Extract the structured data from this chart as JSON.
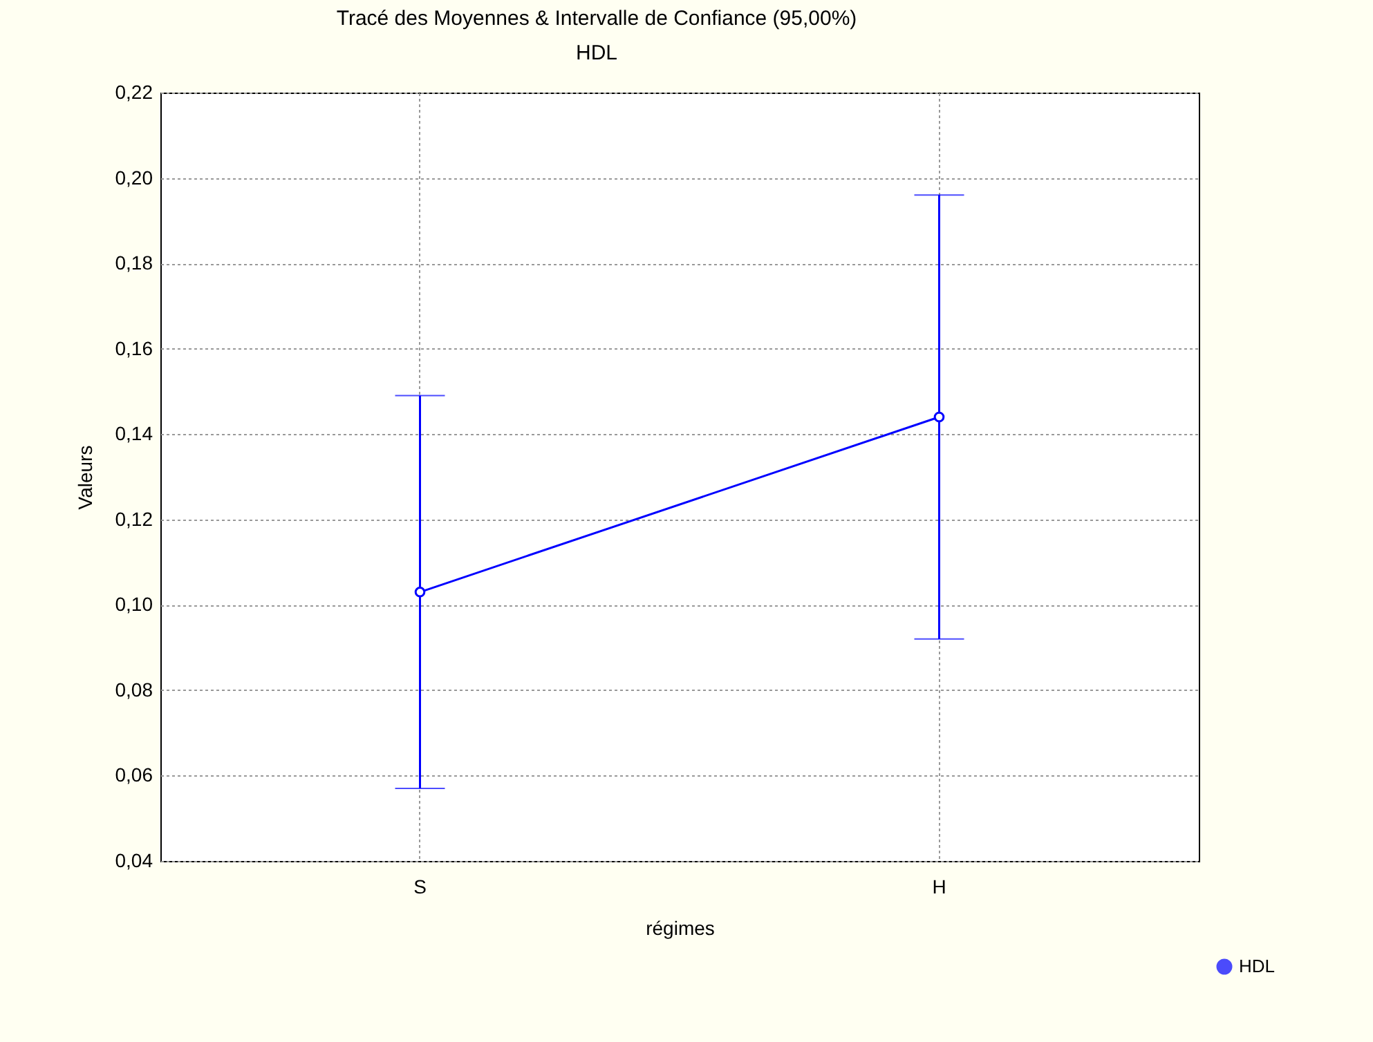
{
  "chart_data": {
    "type": "line",
    "title": "Tracé des Moyennes & Intervalle de Confiance (95,00%)",
    "subtitle": "HDL",
    "xlabel": "régimes",
    "ylabel": "Valeurs",
    "categories": [
      "S",
      "H"
    ],
    "series": [
      {
        "name": "HDL",
        "color": "#0000ff",
        "values": [
          0.103,
          0.144
        ],
        "errors": [
          0.046,
          0.052
        ]
      }
    ],
    "ylim": [
      0.04,
      0.22
    ],
    "yticks": [
      {
        "value": 0.04,
        "label": "0,04"
      },
      {
        "value": 0.06,
        "label": "0,06"
      },
      {
        "value": 0.08,
        "label": "0,08"
      },
      {
        "value": 0.1,
        "label": "0,10"
      },
      {
        "value": 0.12,
        "label": "0,12"
      },
      {
        "value": 0.14,
        "label": "0,14"
      },
      {
        "value": 0.16,
        "label": "0,16"
      },
      {
        "value": 0.18,
        "label": "0,18"
      },
      {
        "value": 0.2,
        "label": "0,20"
      },
      {
        "value": 0.22,
        "label": "0,22"
      }
    ],
    "grid": true,
    "legend": "bottom right",
    "marker": "circle",
    "line_style": "solid"
  }
}
